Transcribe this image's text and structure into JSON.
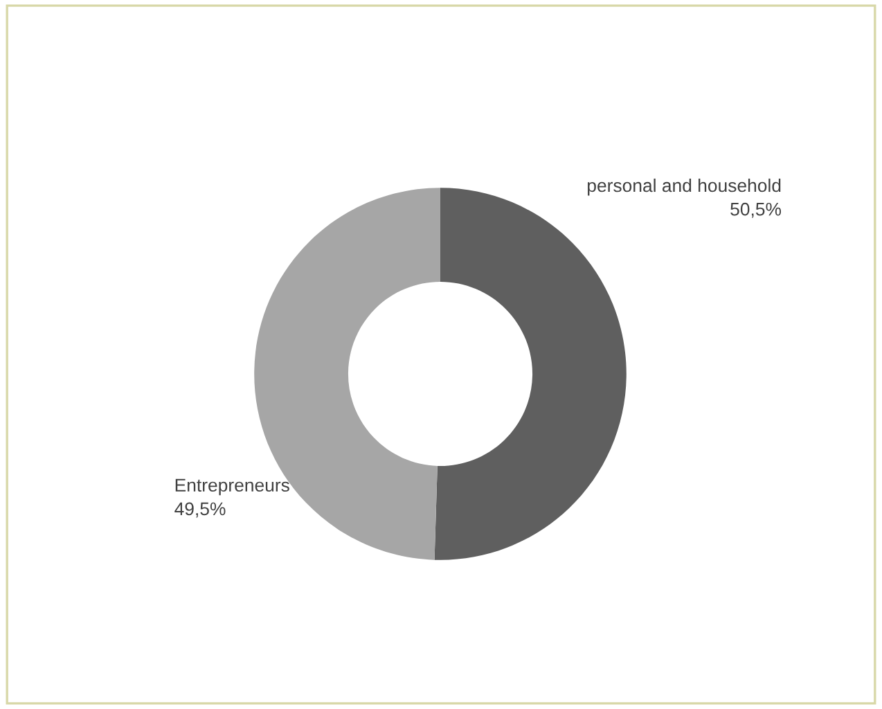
{
  "chart_data": {
    "type": "donut",
    "categories": [
      "personal and household",
      "Entrepreneurs"
    ],
    "values": [
      50.5,
      49.5
    ],
    "colors": [
      "#5f5f5f",
      "#a6a6a6"
    ],
    "value_labels": [
      "50,5%",
      "49,5%"
    ]
  }
}
